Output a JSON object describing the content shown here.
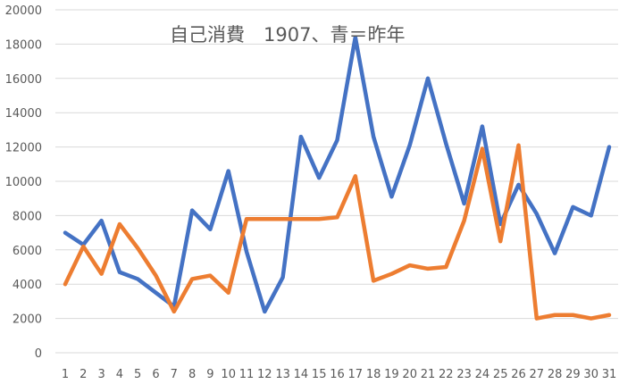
{
  "chart_data": {
    "type": "line",
    "title": "自己消費　1907、青＝昨年",
    "xlabel": "",
    "ylabel": "",
    "categories": [
      "1",
      "2",
      "3",
      "4",
      "5",
      "6",
      "7",
      "8",
      "9",
      "10",
      "11",
      "12",
      "13",
      "14",
      "15",
      "16",
      "17",
      "18",
      "19",
      "20",
      "21",
      "22",
      "23",
      "24",
      "25",
      "26",
      "27",
      "28",
      "29",
      "30",
      "31"
    ],
    "ylim": [
      0,
      20000
    ],
    "yticks": [
      "0",
      "2000",
      "4000",
      "6000",
      "8000",
      "10000",
      "12000",
      "14000",
      "16000",
      "18000",
      "20000"
    ],
    "grid": true,
    "series": [
      {
        "color": "#4472c4",
        "values": [
          7000,
          6300,
          7700,
          4700,
          4300,
          3500,
          2700,
          8300,
          7200,
          10600,
          5900,
          2400,
          4400,
          12600,
          10200,
          12400,
          18400,
          12600,
          9100,
          12100,
          16000,
          12200,
          8700,
          13200,
          7500,
          9800,
          8100,
          5800,
          8500,
          8000,
          12000
        ]
      },
      {
        "color": "#ed7d31",
        "values": [
          4000,
          6200,
          4600,
          7500,
          6100,
          4500,
          2400,
          4300,
          4500,
          3500,
          7800,
          7800,
          7800,
          7800,
          7800,
          7900,
          10300,
          4200,
          4600,
          5100,
          4900,
          5000,
          7700,
          11900,
          6500,
          12100,
          2000,
          2200,
          2200,
          2000,
          2200
        ]
      }
    ]
  }
}
